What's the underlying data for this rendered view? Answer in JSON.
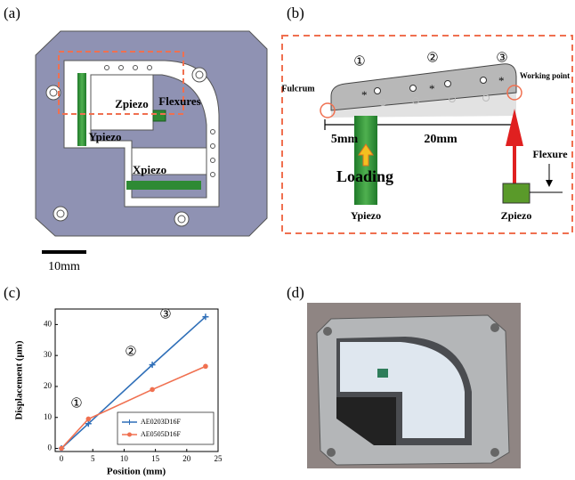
{
  "panel_labels": [
    "(a)",
    "(b)",
    "(c)",
    "(d)"
  ],
  "diagram_a": {
    "zpiezo": "Zpiezo",
    "flexures": "Flexures",
    "ypiezo": "Ypiezo",
    "xpiezo": "Xpiezo",
    "scale_bar": "10mm"
  },
  "diagram_b": {
    "hole_groups": [
      "①",
      "②",
      "③"
    ],
    "fulcrum": "Fulcrum",
    "working_point": "Working point",
    "short_arm": "5mm",
    "long_arm": "20mm",
    "loading": "Loading",
    "flexure": "Flexure",
    "ypiezo": "Ypiezo",
    "zpiezo": "Zpiezo"
  },
  "chart_data": {
    "type": "line",
    "x_label": "Position (mm)",
    "y_label": "Displacement (μm)",
    "annotations": [
      "①",
      "②",
      "③"
    ],
    "x": [
      0,
      4.3,
      14.5,
      23
    ],
    "series": [
      {
        "name": "AE0203D16F",
        "color": "#2f6fb8",
        "marker": "plus",
        "values": [
          0,
          8,
          27,
          42.5
        ]
      },
      {
        "name": "AE0505D16F",
        "color": "#f07050",
        "marker": "circle",
        "values": [
          0,
          9.5,
          19,
          26.5
        ]
      }
    ],
    "xlim": [
      -1,
      25
    ],
    "ylim": [
      -1,
      45
    ],
    "xticks": [
      0,
      5,
      10,
      15,
      20,
      25
    ],
    "yticks": [
      0,
      10,
      20,
      30,
      40
    ],
    "grid": false,
    "legend": "lower right"
  }
}
